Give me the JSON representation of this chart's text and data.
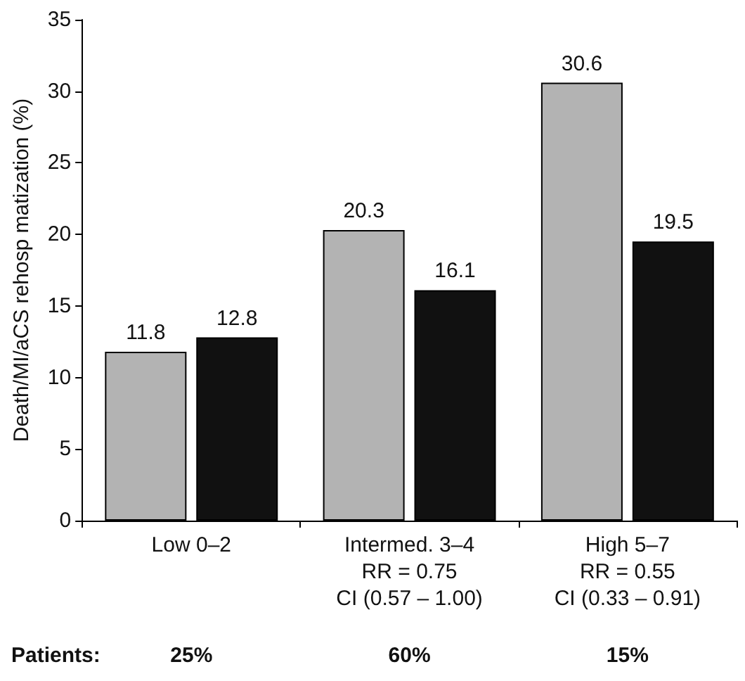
{
  "chart_data": {
    "type": "bar",
    "ylabel": "Death/MI/aCS rehosp matization (%)",
    "categories": [
      "Low 0–2",
      "Intermed. 3–4\nRR = 0.75\nCI (0.57 – 1.00)",
      "High 5–7\nRR = 0.55\nCI (0.33 – 0.91)"
    ],
    "series": [
      {
        "color": "#b3b3b3",
        "values": [
          11.8,
          20.3,
          30.6
        ]
      },
      {
        "color": "#111111",
        "values": [
          12.8,
          16.1,
          19.5
        ]
      }
    ],
    "ylim": [
      0,
      35
    ],
    "yticks": [
      0,
      5,
      10,
      15,
      20,
      25,
      30,
      35
    ],
    "grid": false,
    "data_labels": true,
    "annotations": [
      "Patients:",
      "25%",
      "60%",
      "15%"
    ]
  }
}
